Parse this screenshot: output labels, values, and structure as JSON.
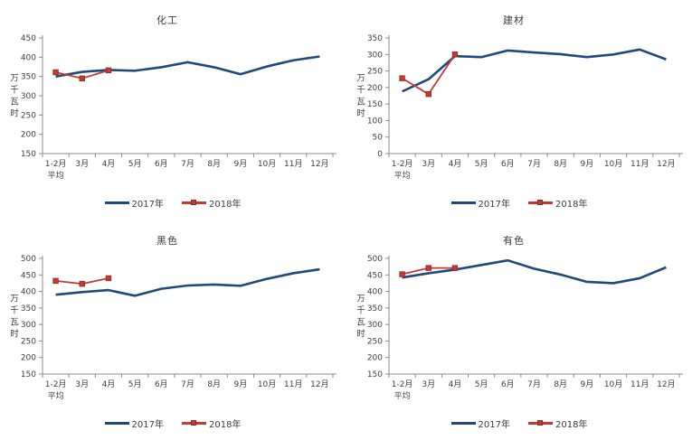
{
  "colors": {
    "background": "#FFFFFF",
    "axis": "#8C8C8C",
    "text": "#404040",
    "series_2017": "#1F497D",
    "series_2018": "#C23B32",
    "marker_stroke": "#8E2B25"
  },
  "y_axis_unit": "万千瓦时",
  "chart_data": [
    {
      "type": "line",
      "title": "化工",
      "ylabel": "万千瓦时",
      "ylim": [
        150,
        450
      ],
      "ytick_step": 50,
      "grid": false,
      "legend_position": "bottom",
      "categories": [
        "1-2月\n平均",
        "3月",
        "4月",
        "5月",
        "6月",
        "7月",
        "8月",
        "9月",
        "10月",
        "11月",
        "12月"
      ],
      "series": [
        {
          "name": "2017年",
          "color": "#1F497D",
          "marker": false,
          "values": [
            350,
            362,
            367,
            365,
            374,
            387,
            374,
            356,
            376,
            392,
            402
          ]
        },
        {
          "name": "2018年",
          "color": "#C23B32",
          "marker": true,
          "values": [
            361,
            345,
            366
          ]
        }
      ]
    },
    {
      "type": "line",
      "title": "建材",
      "ylabel": "万千瓦时",
      "ylim": [
        0,
        350
      ],
      "ytick_step": 50,
      "grid": false,
      "legend_position": "bottom",
      "categories": [
        "1-2月\n平均",
        "3月",
        "4月",
        "5月",
        "6月",
        "7月",
        "8月",
        "9月",
        "10月",
        "11月",
        "12月"
      ],
      "series": [
        {
          "name": "2017年",
          "color": "#1F497D",
          "marker": false,
          "values": [
            188,
            225,
            295,
            292,
            312,
            306,
            301,
            292,
            300,
            315,
            285
          ]
        },
        {
          "name": "2018年",
          "color": "#C23B32",
          "marker": true,
          "values": [
            228,
            180,
            300
          ]
        }
      ]
    },
    {
      "type": "line",
      "title": "黑色",
      "ylabel": "万千瓦时",
      "ylim": [
        150,
        500
      ],
      "ytick_step": 50,
      "grid": false,
      "legend_position": "bottom",
      "categories": [
        "1-2月\n平均",
        "3月",
        "4月",
        "5月",
        "6月",
        "7月",
        "8月",
        "9月",
        "10月",
        "11月",
        "12月"
      ],
      "series": [
        {
          "name": "2017年",
          "color": "#1F497D",
          "marker": false,
          "values": [
            390,
            398,
            404,
            387,
            408,
            418,
            421,
            417,
            438,
            455,
            467
          ]
        },
        {
          "name": "2018年",
          "color": "#C23B32",
          "marker": true,
          "values": [
            432,
            423,
            440
          ]
        }
      ]
    },
    {
      "type": "line",
      "title": "有色",
      "ylabel": "万千瓦时",
      "ylim": [
        150,
        500
      ],
      "ytick_step": 50,
      "grid": false,
      "legend_position": "bottom",
      "categories": [
        "1-2月\n平均",
        "3月",
        "4月",
        "5月",
        "6月",
        "7月",
        "8月",
        "9月",
        "10月",
        "11月",
        "12月"
      ],
      "series": [
        {
          "name": "2017年",
          "color": "#1F497D",
          "marker": false,
          "values": [
            442,
            455,
            466,
            480,
            494,
            469,
            451,
            429,
            425,
            440,
            473
          ]
        },
        {
          "name": "2018年",
          "color": "#C23B32",
          "marker": true,
          "values": [
            452,
            471,
            471
          ]
        }
      ]
    }
  ]
}
